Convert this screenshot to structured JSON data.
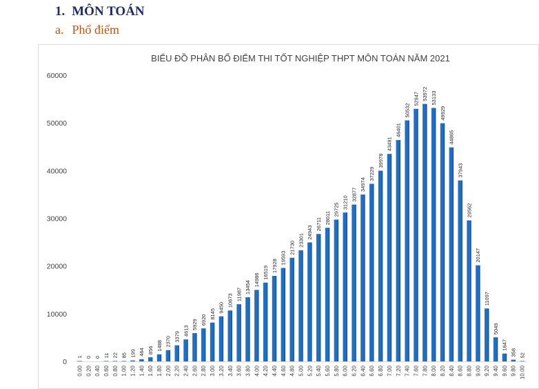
{
  "heading": {
    "number": "1.",
    "text": "MÔN TOÁN"
  },
  "subheading": {
    "letter": "a.",
    "text": "Phổ điểm"
  },
  "colors": {
    "bar": "#1f6fc5",
    "bar_shade": "#0e3f87",
    "heading": "#1f2a6e",
    "subheading": "#c0530e"
  },
  "chart_data": {
    "type": "bar",
    "title": "BIỂU ĐỒ PHÂN BỐ ĐIỂM THI TỐT NGHIỆP THPT MÔN TOÁN NĂM 2021",
    "xlabel": "",
    "ylabel": "",
    "ylim": [
      0,
      60000
    ],
    "yticks": [
      "0",
      "10000",
      "20000",
      "30000",
      "40000",
      "50000",
      "60000"
    ],
    "grid": false,
    "legend": "none",
    "categories": [
      "0.00",
      "0.20",
      "0.40",
      "0.60",
      "0.80",
      "1.00",
      "1.20",
      "1.40",
      "1.60",
      "1.80",
      "2.00",
      "2.20",
      "2.40",
      "2.60",
      "2.80",
      "3.00",
      "3.20",
      "3.40",
      "3.60",
      "3.80",
      "4.00",
      "4.20",
      "4.40",
      "4.60",
      "4.80",
      "5.00",
      "5.20",
      "5.40",
      "5.60",
      "5.80",
      "6.00",
      "6.20",
      "6.40",
      "6.60",
      "6.80",
      "7.00",
      "7.20",
      "7.40",
      "7.60",
      "7.80",
      "8.00",
      "8.20",
      "8.40",
      "8.60",
      "8.80",
      "9.00",
      "9.20",
      "9.40",
      "9.60",
      "9.80",
      "10.00"
    ],
    "values": [
      1,
      0,
      0,
      11,
      22,
      85,
      199,
      464,
      856,
      1488,
      2370,
      3379,
      4613,
      5929,
      6920,
      8145,
      9450,
      10673,
      11987,
      13454,
      14986,
      16519,
      17928,
      19593,
      21730,
      23301,
      24943,
      26711,
      28011,
      29725,
      31210,
      32877,
      34974,
      37229,
      39978,
      43491,
      46401,
      50532,
      52947,
      53972,
      53133,
      49929,
      44865,
      37943,
      29562,
      20147,
      11097,
      5049,
      1647,
      358,
      52
    ]
  }
}
